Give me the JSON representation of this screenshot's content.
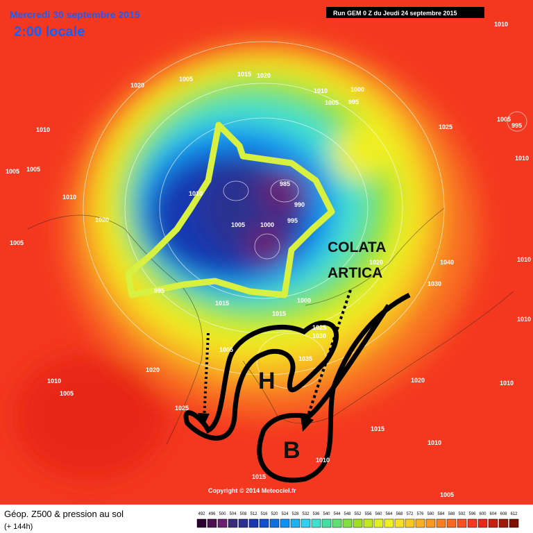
{
  "header": {
    "date": "Mercredi 30 septembre 2015",
    "time": "2:00 locale",
    "run": "Run GEM 0 Z du Jeudi 24 septembre 2015"
  },
  "annotations": {
    "cold_air": [
      "COLATA",
      "ARTICA"
    ],
    "high": "H",
    "low": "B"
  },
  "isobar_labels": [
    1010,
    1020,
    1005,
    1015,
    1020,
    1010,
    1000,
    1005,
    995,
    1025,
    1005,
    995,
    1010,
    1005,
    1005,
    1010,
    1010,
    1010,
    985,
    990,
    1020,
    1005,
    1000,
    995,
    1005,
    1020,
    1040,
    1030,
    995,
    1015,
    1000,
    1015,
    1010,
    1010,
    1005,
    1025,
    1030,
    1035,
    1020,
    1020,
    1010,
    1005,
    1025,
    1015,
    1010,
    1010,
    1015,
    1005,
    1010
  ],
  "copyright": "Copyright © 2014 Meteociel.fr",
  "footer": {
    "title": "Géop. Z500 & pression au sol",
    "lead": "(+ 144h)"
  },
  "scale": {
    "values": [
      492,
      496,
      500,
      504,
      508,
      512,
      516,
      520,
      524,
      528,
      532,
      536,
      540,
      544,
      548,
      552,
      556,
      560,
      564,
      568,
      572,
      576,
      580,
      584,
      588,
      592,
      596,
      600,
      604,
      608,
      612
    ],
    "colors": [
      "#2a0030",
      "#4a1050",
      "#6a2070",
      "#3a2a7a",
      "#2a3090",
      "#1838b0",
      "#1050d0",
      "#1070e0",
      "#1090f0",
      "#20b0f0",
      "#30d0f0",
      "#40e0d0",
      "#40e0a0",
      "#60e070",
      "#80e040",
      "#a0e020",
      "#c0e820",
      "#e0f020",
      "#f0f020",
      "#f8e020",
      "#f8c820",
      "#f8b020",
      "#f89820",
      "#f88020",
      "#f86820",
      "#f85020",
      "#f83820",
      "#e82818",
      "#c82010",
      "#a01808",
      "#801004"
    ]
  }
}
